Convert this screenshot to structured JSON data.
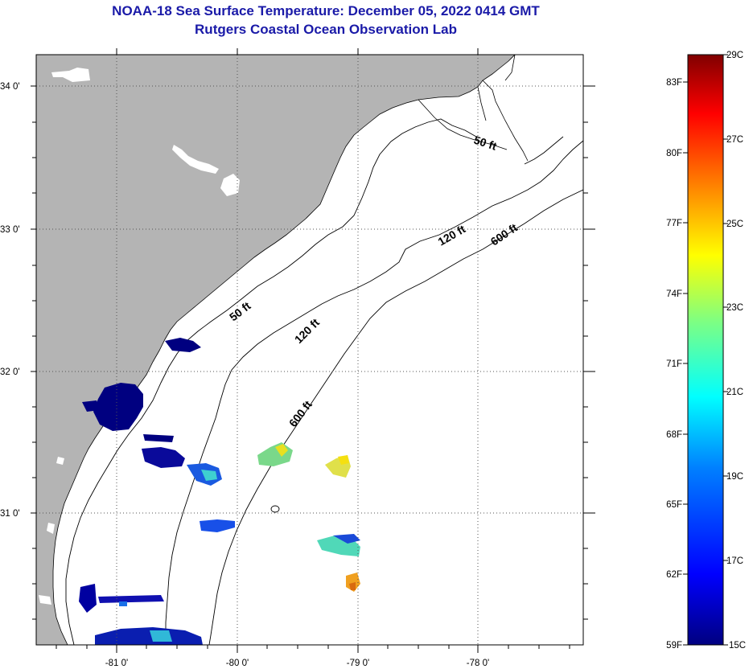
{
  "title": {
    "line1": "NOAA-18 Sea Surface Temperature:  December 05, 2022 0414 GMT",
    "line2": "Rutgers Coastal Ocean Observation Lab"
  },
  "map": {
    "lat_labels": [
      "34 0'",
      "33 0'",
      "32 0'",
      "31 0'"
    ],
    "lon_labels": [
      "-81 0'",
      "-80 0'",
      "-79 0'",
      "-78 0'"
    ],
    "contour_labels": {
      "c50_north": "50 ft",
      "c50_mid": "50 ft",
      "c120_north": "120 ft",
      "c120_mid": "120 ft",
      "c600_north": "600 ft",
      "c600_mid": "600 ft"
    },
    "colors": {
      "land": "#b4b4b4",
      "water": "#ffffff",
      "coast": "#000000",
      "grid": "#555555"
    }
  },
  "colorbar": {
    "f_labels": [
      "83F",
      "80F",
      "77F",
      "74F",
      "71F",
      "68F",
      "65F",
      "62F",
      "59F"
    ],
    "c_labels": [
      "29C",
      "27C",
      "25C",
      "23C",
      "21C",
      "19C",
      "17C",
      "15C"
    ],
    "range_c": [
      15,
      29
    ],
    "colors": [
      "#000080",
      "#0000ff",
      "#0080ff",
      "#00ffff",
      "#80ff80",
      "#ffff00",
      "#ff8000",
      "#ff0000",
      "#800000"
    ]
  }
}
